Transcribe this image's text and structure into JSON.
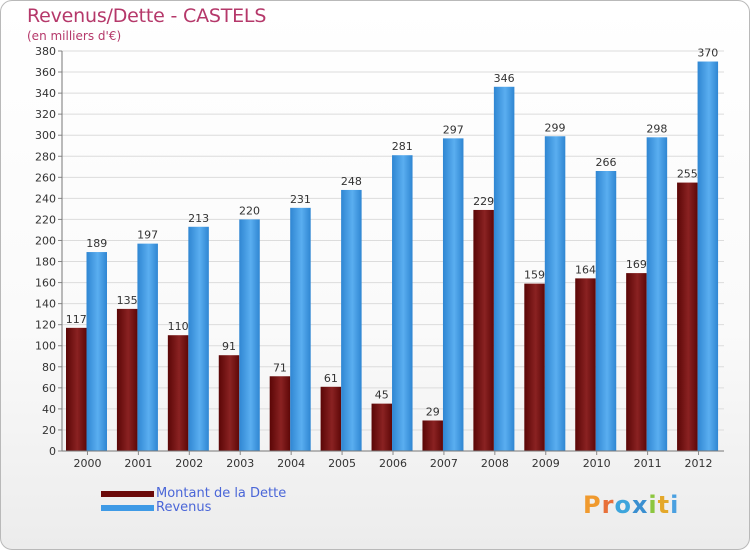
{
  "title": "Revenus/Dette - CASTELS",
  "subtitle": "(en milliers d'€)",
  "legend": [
    {
      "label": "Montant de la Dette",
      "color": "#6b0a0a"
    },
    {
      "label": "Revenus",
      "color": "#3e9ae6"
    }
  ],
  "logo": {
    "letters": [
      "P",
      "r",
      "o",
      "x",
      "i",
      "t",
      "i"
    ],
    "colors": [
      "#f09a2e",
      "#e8703a",
      "#3da5dc",
      "#3a8fd0",
      "#8cc63f",
      "#e4a82a",
      "#4aa0e0"
    ]
  },
  "chart_data": {
    "type": "bar",
    "categories": [
      "2000",
      "2001",
      "2002",
      "2003",
      "2004",
      "2005",
      "2006",
      "2007",
      "2008",
      "2009",
      "2010",
      "2011",
      "2012"
    ],
    "series": [
      {
        "name": "Montant de la Dette",
        "values": [
          117,
          135,
          110,
          91,
          71,
          61,
          45,
          29,
          229,
          159,
          164,
          169,
          255
        ],
        "color": "#6b0a0a"
      },
      {
        "name": "Revenus",
        "values": [
          189,
          197,
          213,
          220,
          231,
          248,
          281,
          297,
          346,
          299,
          266,
          298,
          370
        ],
        "color": "#3e9ae6"
      }
    ],
    "ylim": [
      0,
      380
    ],
    "ytick_step": 20,
    "grid": true,
    "legend_position": "bottom-left"
  }
}
